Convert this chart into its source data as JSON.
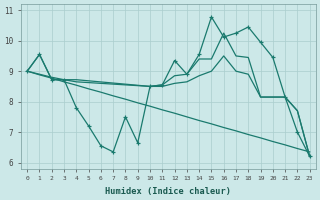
{
  "bg_color": "#cce8e8",
  "line_color": "#1a7a6e",
  "grid_color": "#aacece",
  "xlabel": "Humidex (Indice chaleur)",
  "xlim": [
    -0.5,
    23.5
  ],
  "ylim": [
    5.8,
    11.2
  ],
  "xticks": [
    0,
    1,
    2,
    3,
    4,
    5,
    6,
    7,
    8,
    9,
    10,
    11,
    12,
    13,
    14,
    15,
    16,
    17,
    18,
    19,
    20,
    21,
    22,
    23
  ],
  "yticks": [
    6,
    7,
    8,
    9,
    10,
    11
  ],
  "series": [
    {
      "x": [
        0,
        1,
        2,
        3,
        4,
        5,
        6,
        7,
        8,
        9,
        10,
        11,
        12,
        13,
        14,
        15,
        16,
        17,
        18,
        19,
        20,
        21,
        22,
        23
      ],
      "y": [
        9.0,
        9.55,
        8.72,
        8.72,
        7.8,
        7.2,
        6.55,
        6.35,
        7.5,
        6.65,
        8.5,
        8.55,
        9.35,
        8.9,
        9.55,
        10.78,
        10.12,
        10.25,
        10.45,
        9.95,
        9.45,
        8.15,
        7.0,
        6.2
      ],
      "marker": true,
      "linestyle": "-",
      "lw": 0.9
    },
    {
      "x": [
        0,
        1,
        2,
        3,
        4,
        10,
        11,
        12,
        13,
        14,
        15,
        16,
        17,
        18,
        19,
        20,
        21,
        22,
        23
      ],
      "y": [
        9.0,
        9.55,
        8.72,
        8.72,
        8.72,
        8.5,
        8.55,
        8.85,
        8.9,
        9.4,
        9.4,
        10.25,
        9.5,
        9.45,
        8.15,
        8.15,
        8.15,
        7.7,
        6.2
      ],
      "marker": false,
      "linestyle": "-",
      "lw": 0.9
    },
    {
      "x": [
        0,
        1,
        2,
        3,
        4,
        5,
        6,
        7,
        8,
        9,
        10,
        11,
        12,
        13,
        14,
        15,
        16,
        17,
        18,
        19,
        20,
        21,
        22,
        23
      ],
      "y": [
        9.0,
        8.88,
        8.77,
        8.65,
        8.54,
        8.42,
        8.31,
        8.19,
        8.08,
        7.96,
        7.85,
        7.73,
        7.62,
        7.5,
        7.38,
        7.27,
        7.15,
        7.04,
        6.92,
        6.81,
        6.69,
        6.58,
        6.46,
        6.35
      ],
      "marker": false,
      "linestyle": "-",
      "lw": 0.9
    },
    {
      "x": [
        0,
        1,
        2,
        3,
        4,
        10,
        11,
        12,
        13,
        14,
        15,
        16,
        17,
        18,
        19,
        20,
        21,
        22,
        23
      ],
      "y": [
        9.0,
        8.9,
        8.8,
        8.72,
        8.65,
        8.5,
        8.5,
        8.6,
        8.65,
        8.85,
        9.0,
        9.5,
        9.0,
        8.9,
        8.15,
        8.15,
        8.15,
        7.7,
        6.2
      ],
      "marker": false,
      "linestyle": "-",
      "lw": 0.9
    }
  ]
}
